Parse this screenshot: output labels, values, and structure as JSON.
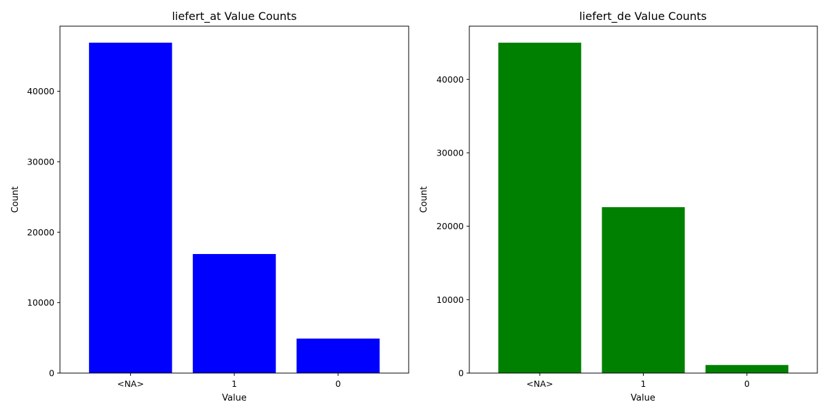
{
  "chart_data": [
    {
      "type": "bar",
      "title": "liefert_at Value Counts",
      "xlabel": "Value",
      "ylabel": "Count",
      "categories": [
        "<NA>",
        "1",
        "0"
      ],
      "values": [
        46900,
        16900,
        4900
      ],
      "yticks": [
        0,
        10000,
        20000,
        30000,
        40000
      ],
      "ylim": [
        0,
        49245
      ],
      "color": "#0000ff",
      "grid": false,
      "legend": null
    },
    {
      "type": "bar",
      "title": "liefert_de Value Counts",
      "xlabel": "Value",
      "ylabel": "Count",
      "categories": [
        "<NA>",
        "1",
        "0"
      ],
      "values": [
        45000,
        22600,
        1100
      ],
      "yticks": [
        0,
        10000,
        20000,
        30000,
        40000
      ],
      "ylim": [
        0,
        47250
      ],
      "color": "#008000",
      "grid": false,
      "legend": null
    }
  ]
}
